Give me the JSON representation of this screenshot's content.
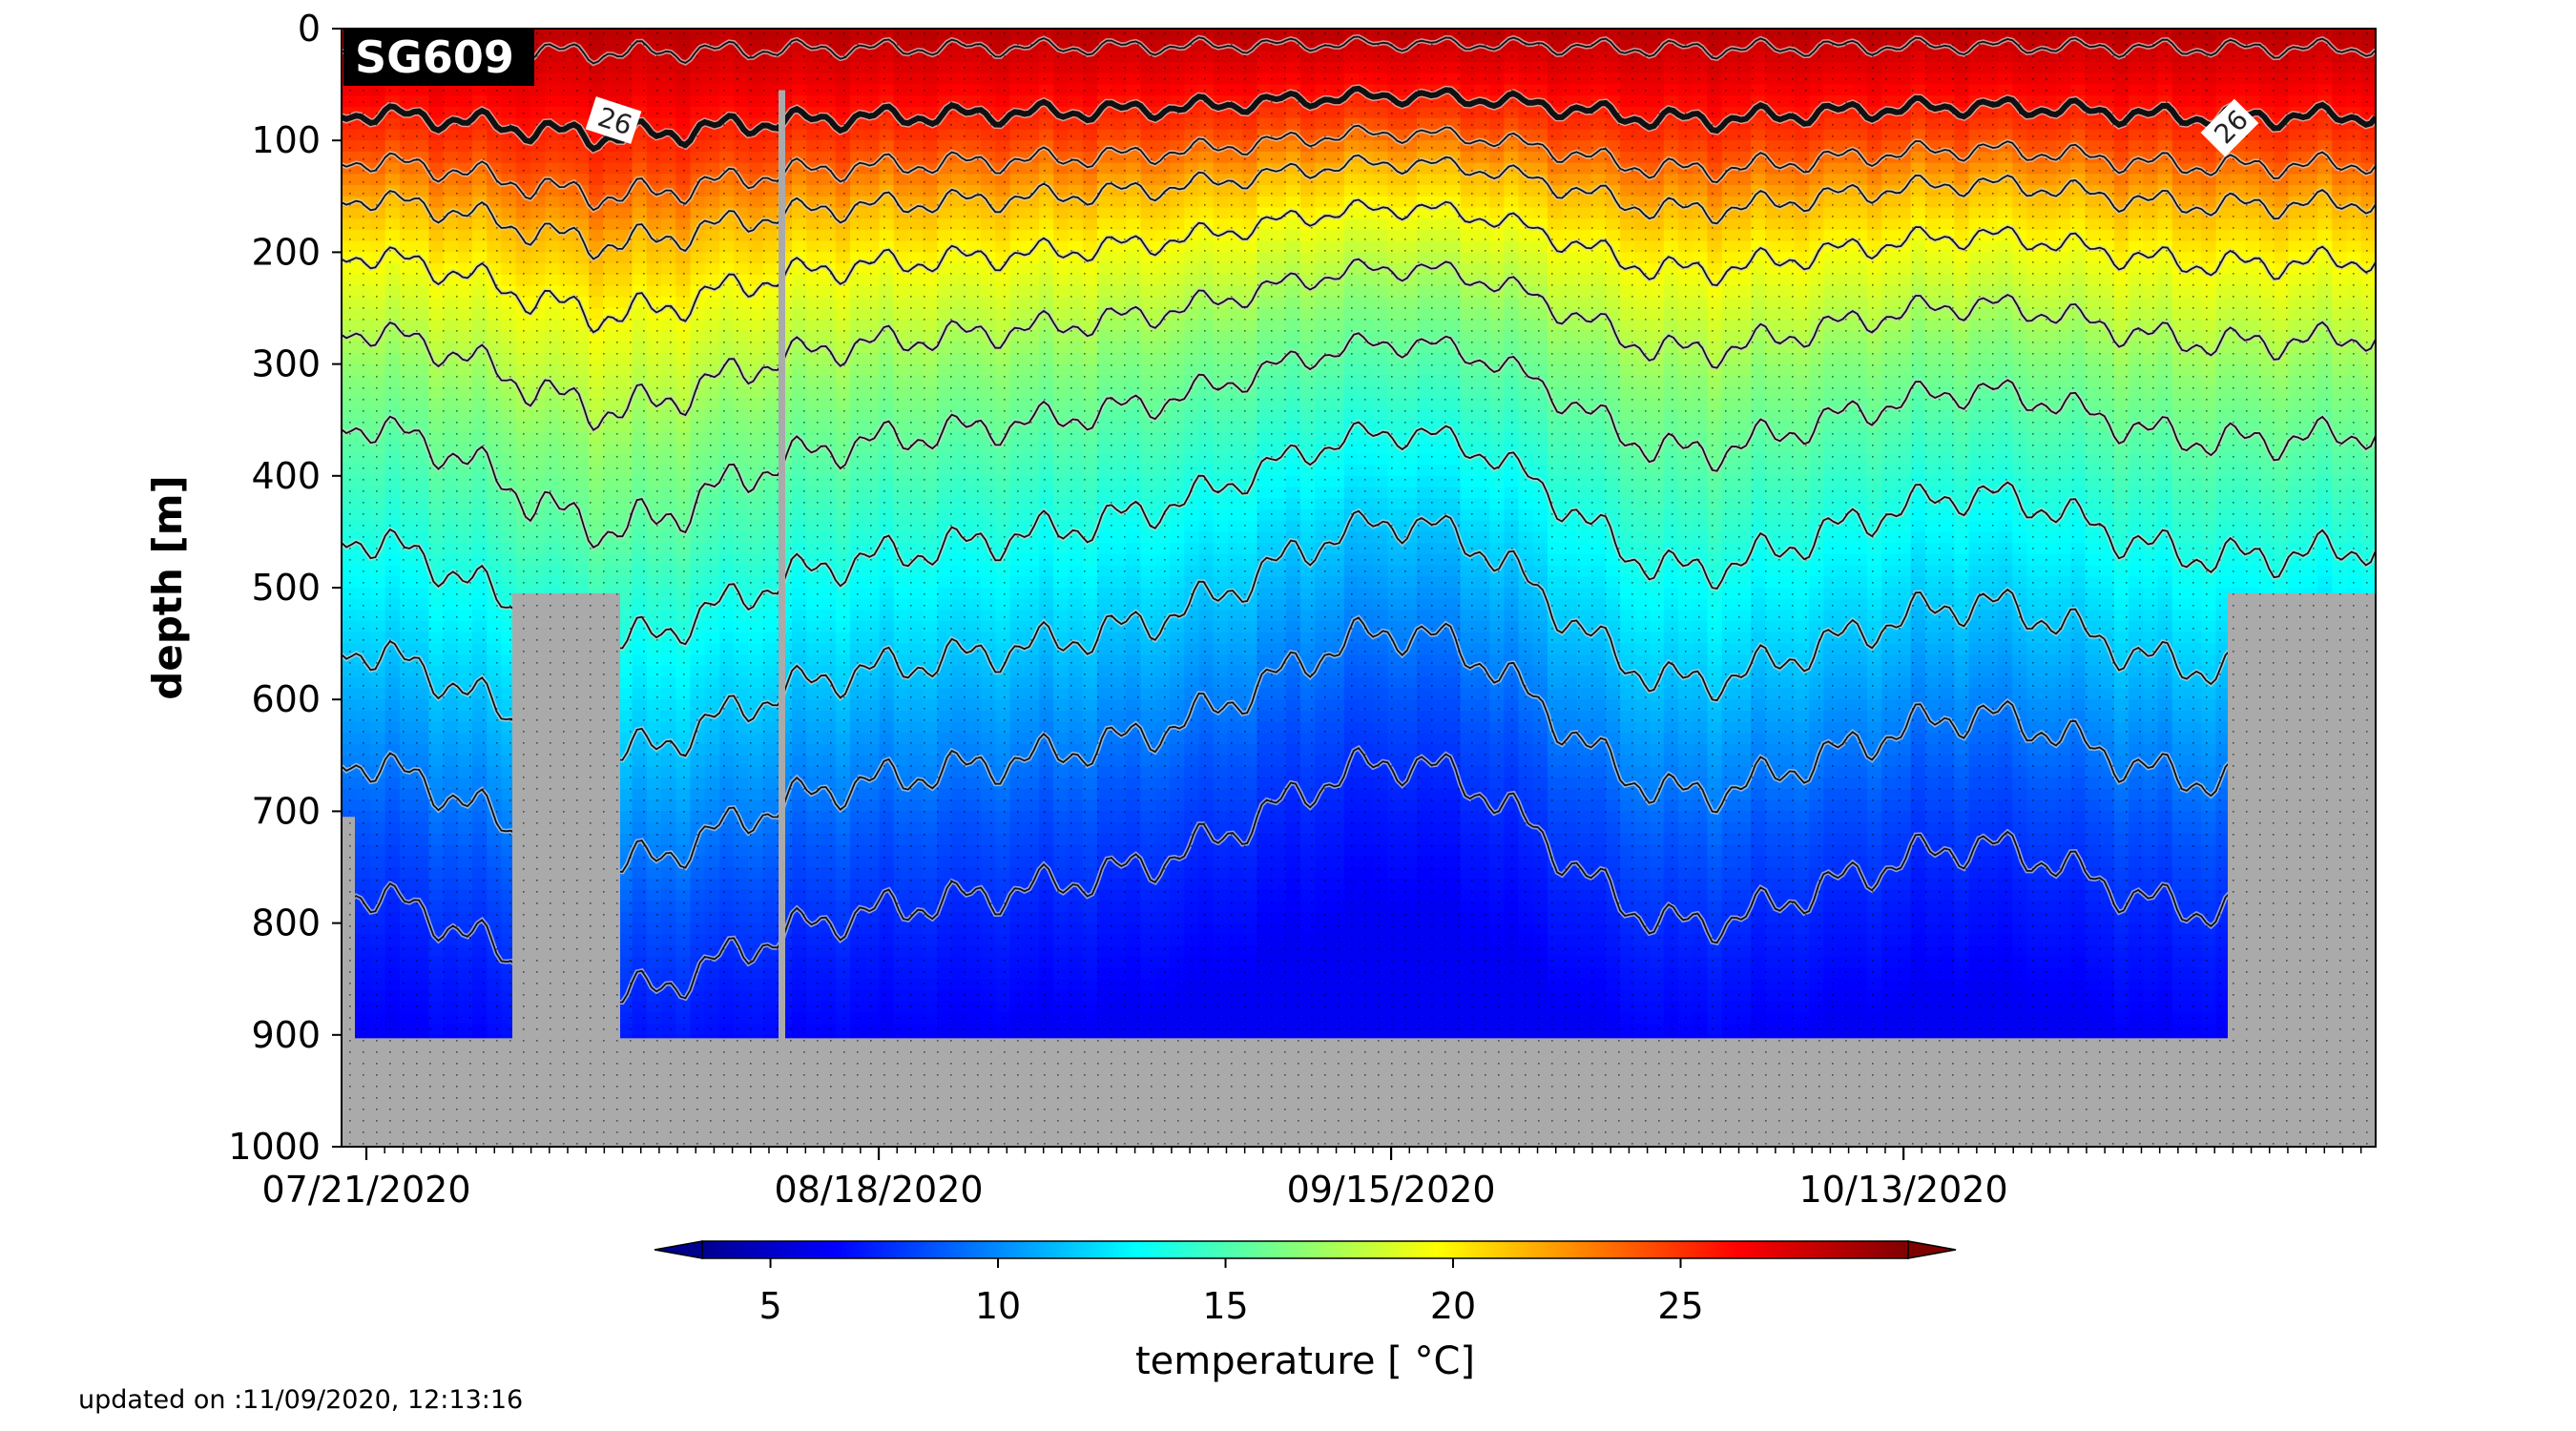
{
  "chart_data": {
    "type": "heatmap",
    "glider_id": "SG609",
    "ylabel": "depth [m]",
    "xlabel": "",
    "yticks": [
      "0",
      "100",
      "200",
      "300",
      "400",
      "500",
      "600",
      "700",
      "800",
      "900",
      "1000"
    ],
    "ylim": [
      1000,
      0
    ],
    "xticks": [
      "07/21/2020",
      "08/18/2020",
      "09/15/2020",
      "10/13/2020"
    ],
    "xlim_days_span": 111,
    "colorbar": {
      "label": "temperature [ °C]",
      "ticks": [
        "5",
        "10",
        "15",
        "20",
        "25"
      ],
      "range": [
        3.5,
        30
      ],
      "colormap": "jet",
      "extend": "both"
    },
    "contour_labels": [
      "26",
      "26"
    ],
    "highlighted_contour": 26,
    "contour_interval": 2,
    "no_data_color": "#aaaaaa",
    "temperature_profile": {
      "depths_m": [
        0,
        50,
        100,
        150,
        200,
        250,
        300,
        400,
        500,
        600,
        700,
        800,
        900
      ],
      "temperature_c": [
        28.5,
        27.0,
        25.0,
        22.0,
        20.0,
        18.5,
        17.0,
        15.0,
        13.0,
        11.0,
        9.0,
        7.5,
        6.5
      ]
    }
  },
  "footer": {
    "updated": "updated on :11/09/2020, 12:13:16"
  }
}
